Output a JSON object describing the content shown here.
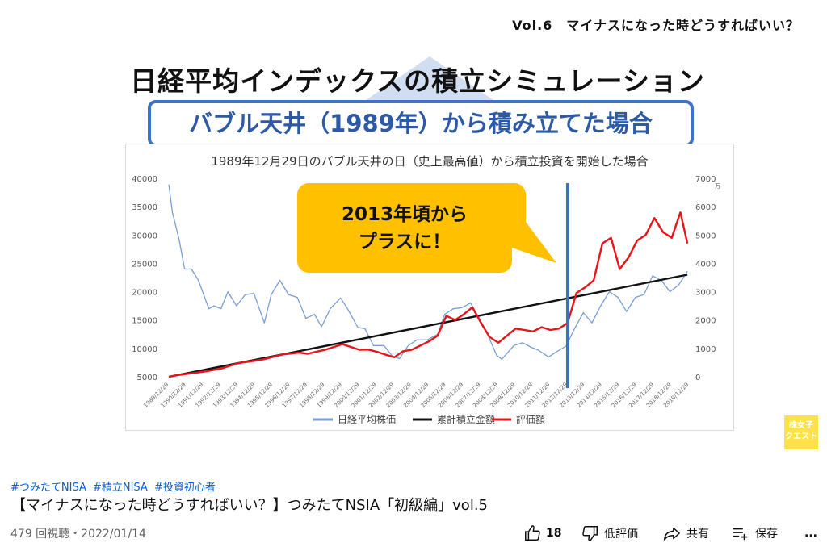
{
  "video": {
    "vol_label": "Vol.6　マイナスになった時どうすればいい？",
    "main_title": "日経平均インデックスの積立シミュレーション",
    "subtitle": "バブル天井（1989年）から積み立てた場合",
    "callout_line1": "2013年頃から",
    "callout_line2": "プラスに！",
    "badge_line1": "株女子",
    "badge_line2": "クエスト"
  },
  "chart_data": {
    "type": "line",
    "title": "1989年12月29日のバブル天井の日（史上最高値）から積立投資を開始した場合",
    "x_ticks": [
      "1989/12/29",
      "1990/12/29",
      "1991/12/29",
      "1992/12/29",
      "1993/12/29",
      "1994/12/29",
      "1995/12/29",
      "1996/12/29",
      "1997/12/29",
      "1998/12/29",
      "1999/12/29",
      "2000/12/29",
      "2001/12/29",
      "2002/12/29",
      "2003/12/29",
      "2004/12/29",
      "2005/12/29",
      "2006/12/29",
      "2007/12/29",
      "2008/12/29",
      "2009/12/29",
      "2010/12/29",
      "2011/12/29",
      "2012/12/29",
      "2013/12/29",
      "2014/12/29",
      "2015/12/29",
      "2016/12/29",
      "2017/12/29",
      "2018/12/29",
      "2019/12/29"
    ],
    "ylim_left": [
      5000,
      40000
    ],
    "yticks_left": [
      "40000",
      "35000",
      "30000",
      "25000",
      "20000",
      "15000",
      "10000",
      "5000"
    ],
    "ylim_right": [
      0,
      7000
    ],
    "yticks_right": [
      "7000",
      "6000",
      "5000",
      "4000",
      "3000",
      "2000",
      "1000",
      "0"
    ],
    "right_unit": "万",
    "marker_x": 2013.0,
    "series": [
      {
        "name": "日経平均株価",
        "axis": "left",
        "color": "#7a9fd4",
        "x": [
          1989.99,
          1990.2,
          1990.6,
          1990.9,
          1991.3,
          1991.7,
          1992.3,
          1992.6,
          1993.0,
          1993.4,
          1993.9,
          1994.4,
          1994.9,
          1995.5,
          1995.9,
          1996.4,
          1996.9,
          1997.4,
          1997.9,
          1998.4,
          1998.8,
          1999.3,
          1999.9,
          2000.3,
          2000.9,
          2001.3,
          2001.8,
          2002.4,
          2002.9,
          2003.3,
          2003.8,
          2004.3,
          2004.9,
          2005.5,
          2005.9,
          2006.4,
          2006.9,
          2007.4,
          2007.9,
          2008.3,
          2008.9,
          2009.2,
          2009.9,
          2010.4,
          2010.9,
          2011.3,
          2011.9,
          2012.4,
          2012.9,
          2013.4,
          2013.9,
          2014.4,
          2014.9,
          2015.4,
          2015.9,
          2016.4,
          2016.9,
          2017.4,
          2017.9,
          2018.4,
          2018.9,
          2019.4,
          2019.9
        ],
        "values": [
          38900,
          34000,
          29000,
          24000,
          24000,
          22000,
          17000,
          17500,
          17000,
          20000,
          17500,
          19500,
          19700,
          14500,
          19500,
          22000,
          19500,
          19000,
          15300,
          16000,
          13800,
          17000,
          18900,
          17000,
          13700,
          13500,
          10500,
          10500,
          8600,
          8200,
          10500,
          11500,
          11500,
          12500,
          16000,
          17000,
          17200,
          18000,
          15300,
          13000,
          8800,
          8100,
          10500,
          11000,
          10200,
          9700,
          8500,
          9500,
          10400,
          13500,
          16300,
          14500,
          17500,
          20000,
          19000,
          16500,
          19000,
          19500,
          22800,
          22000,
          20000,
          21200,
          23600
        ]
      },
      {
        "name": "累計積立金額",
        "axis": "right",
        "color": "#111111",
        "x": [
          1989.99,
          2019.9
        ],
        "values": [
          0,
          3600
        ]
      },
      {
        "name": "評価額",
        "axis": "right",
        "color": "#e8141b",
        "x": [
          1989.99,
          1990.5,
          1991.0,
          1992.0,
          1993.0,
          1994.0,
          1995.0,
          1995.5,
          1996.5,
          1997.5,
          1998.0,
          1999.0,
          1999.5,
          2000.0,
          2000.5,
          2001.0,
          2001.5,
          2002.0,
          2002.5,
          2003.0,
          2003.5,
          2004.0,
          2004.5,
          2005.0,
          2005.5,
          2006.0,
          2006.5,
          2007.0,
          2007.5,
          2008.0,
          2008.5,
          2009.0,
          2009.5,
          2010.0,
          2010.5,
          2011.0,
          2011.5,
          2012.0,
          2012.5,
          2013.0,
          2013.5,
          2014.0,
          2014.5,
          2015.0,
          2015.5,
          2016.0,
          2016.5,
          2017.0,
          2017.5,
          2018.0,
          2018.5,
          2019.0,
          2019.5,
          2019.9
        ],
        "values": [
          0,
          60,
          100,
          180,
          290,
          480,
          570,
          620,
          780,
          850,
          810,
          950,
          1050,
          1150,
          1050,
          950,
          960,
          880,
          780,
          690,
          900,
          950,
          1100,
          1250,
          1450,
          2150,
          2000,
          2200,
          2450,
          1900,
          1400,
          1200,
          1450,
          1700,
          1650,
          1600,
          1750,
          1650,
          1700,
          1900,
          2950,
          3150,
          3400,
          4700,
          4900,
          3800,
          4200,
          4800,
          5000,
          5600,
          5100,
          4900,
          5800,
          4700
        ]
      }
    ]
  },
  "metadata_row": {
    "hashtags": [
      "#つみたてNISA",
      "#積立NISA",
      "#投資初心者"
    ],
    "title": "【マイナスになった時どうすればいい？】つみたてNSIA「初級編」vol.5",
    "views_date": "479 回視聴・2022/01/14",
    "like_count": "18",
    "dislike_label": "低評価",
    "share_label": "共有",
    "save_label": "保存",
    "more_label": "..."
  }
}
